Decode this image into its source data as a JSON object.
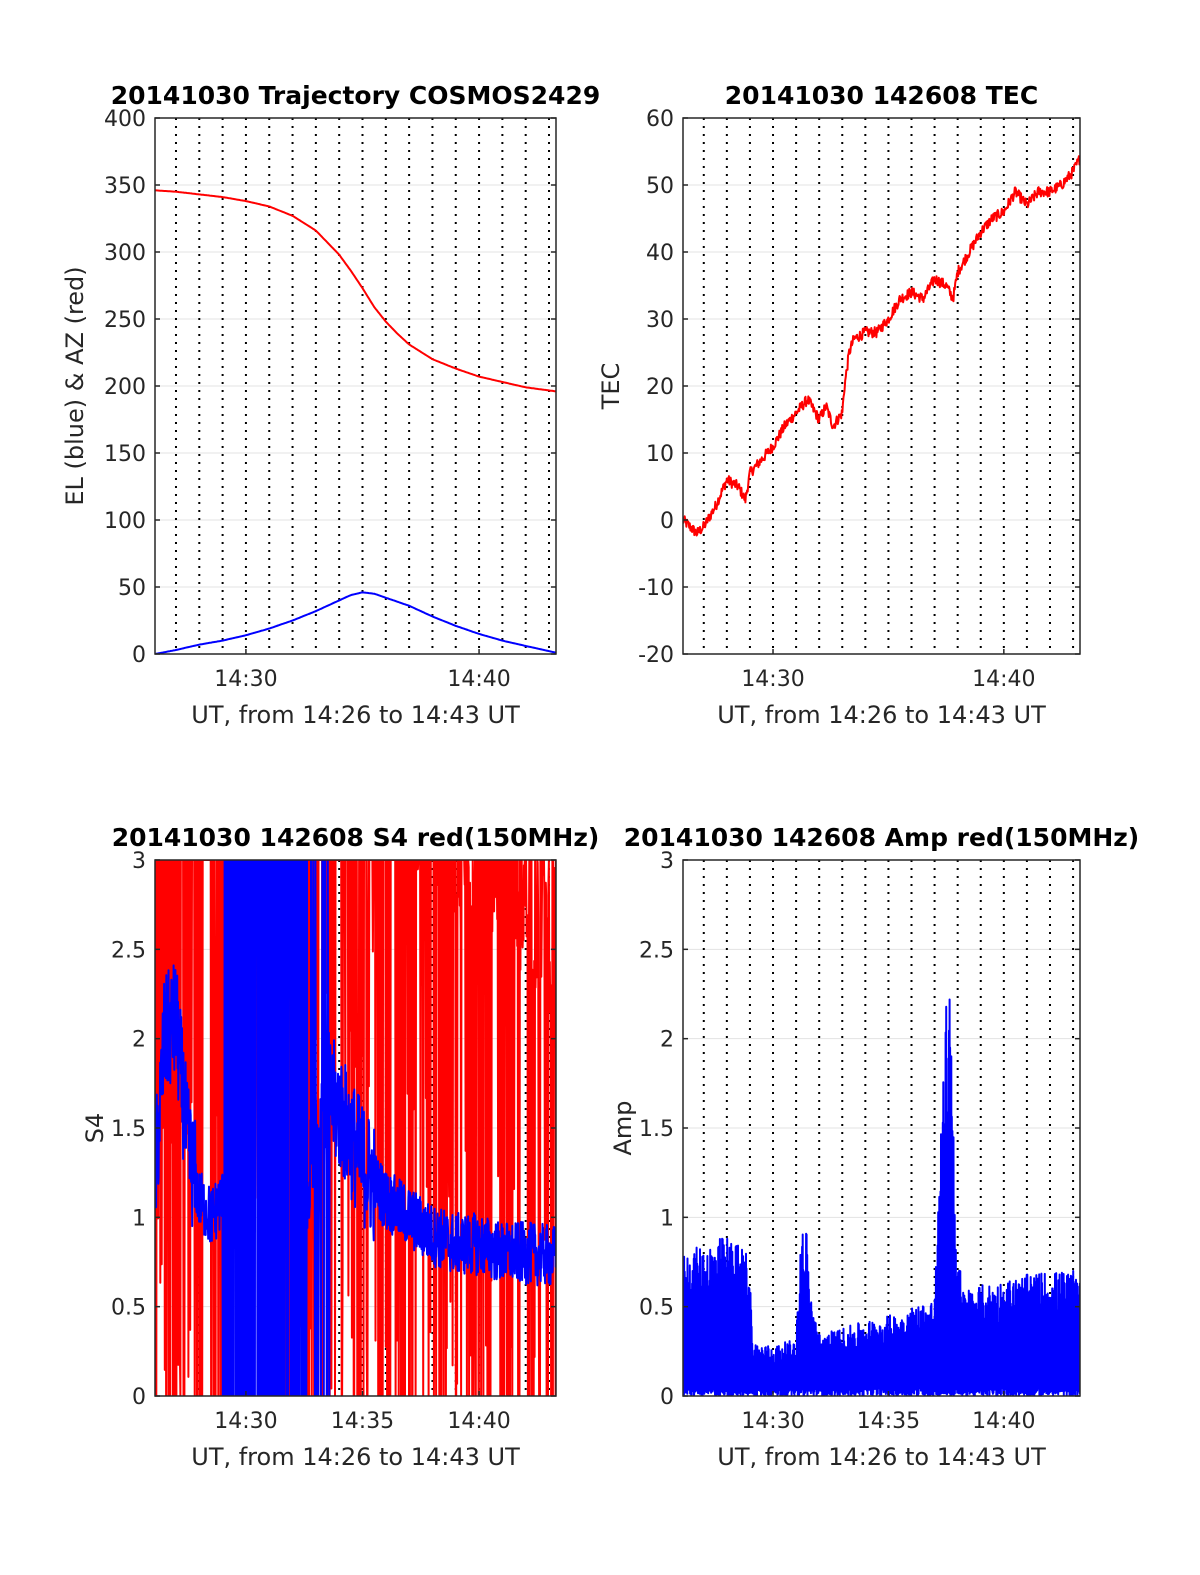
{
  "figure_date": "20141030",
  "chart_data": [
    {
      "id": "trajectory",
      "type": "line",
      "title": "20141030 Trajectory COSMOS2429",
      "xlabel": "UT, from 14:26 to 14:43 UT",
      "ylabel": "EL (blue) & AZ (red)",
      "xlim_minutes": [
        866.1,
        883.3
      ],
      "ylim": [
        0,
        400
      ],
      "xticks": [
        {
          "t": 870,
          "label": "14:30"
        },
        {
          "t": 880,
          "label": "14:40"
        }
      ],
      "yticks": [
        {
          "v": 0,
          "label": "0"
        },
        {
          "v": 50,
          "label": "50"
        },
        {
          "v": 100,
          "label": "100"
        },
        {
          "v": 150,
          "label": "150"
        },
        {
          "v": 200,
          "label": "200"
        },
        {
          "v": 250,
          "label": "250"
        },
        {
          "v": 300,
          "label": "300"
        },
        {
          "v": 350,
          "label": "350"
        },
        {
          "v": 400,
          "label": "400"
        }
      ],
      "grid": true,
      "series": [
        {
          "color": "#ff0000",
          "x": [
            866.1,
            867,
            868,
            869,
            870,
            871,
            872,
            873,
            874,
            874.5,
            875,
            875.5,
            876,
            876.5,
            877,
            878,
            879,
            880,
            881,
            882,
            883.3
          ],
          "values": [
            346,
            345,
            343,
            341,
            338,
            334,
            327,
            316,
            298,
            286,
            273,
            259,
            248,
            239,
            231,
            220,
            213,
            207,
            203,
            199,
            196
          ]
        },
        {
          "color": "#0000ff",
          "x": [
            866.1,
            867,
            868,
            869,
            870,
            871,
            872,
            873,
            874,
            874.5,
            875,
            875.5,
            876,
            877,
            878,
            879,
            880,
            881,
            882,
            883.3
          ],
          "values": [
            0,
            3,
            7,
            10,
            14,
            19,
            25,
            32,
            40,
            44,
            46,
            45,
            42,
            36,
            28,
            21,
            15,
            10,
            6,
            1
          ]
        }
      ]
    },
    {
      "id": "tec",
      "type": "line",
      "title": "20141030 142608 TEC",
      "xlabel": "UT, from 14:26 to 14:43 UT",
      "ylabel": "TEC",
      "xlim_minutes": [
        866.1,
        883.3
      ],
      "ylim": [
        -20,
        60
      ],
      "xticks": [
        {
          "t": 870,
          "label": "14:30"
        },
        {
          "t": 880,
          "label": "14:40"
        }
      ],
      "yticks": [
        {
          "v": -20,
          "label": "-20"
        },
        {
          "v": -10,
          "label": "-10"
        },
        {
          "v": 0,
          "label": "0"
        },
        {
          "v": 10,
          "label": "10"
        },
        {
          "v": 20,
          "label": "20"
        },
        {
          "v": 30,
          "label": "30"
        },
        {
          "v": 40,
          "label": "40"
        },
        {
          "v": 50,
          "label": "50"
        },
        {
          "v": 60,
          "label": "60"
        }
      ],
      "grid": true,
      "series": [
        {
          "color": "#ff0000",
          "x": [
            866.1,
            866.4,
            866.7,
            867.0,
            867.5,
            868.0,
            868.5,
            868.8,
            869.0,
            869.5,
            870.0,
            870.5,
            871.0,
            871.5,
            872.0,
            872.3,
            872.6,
            873.0,
            873.1,
            873.3,
            873.5,
            874.0,
            874.5,
            875.0,
            875.5,
            876.0,
            876.5,
            877.0,
            877.5,
            877.8,
            878.0,
            878.5,
            879.0,
            879.5,
            880.0,
            880.5,
            881.0,
            881.5,
            882.0,
            882.5,
            883.0,
            883.3
          ],
          "values": [
            0,
            -1,
            -2,
            -1,
            2,
            6,
            5,
            3,
            7,
            9,
            11,
            14,
            16,
            18,
            15,
            17,
            14,
            16,
            20,
            25,
            27,
            28,
            28,
            30,
            33,
            34,
            33,
            36,
            35,
            33,
            37,
            40,
            43,
            45,
            46,
            49,
            47,
            49,
            49,
            50,
            52,
            54
          ]
        }
      ]
    },
    {
      "id": "s4",
      "type": "line",
      "title": "20141030 142608 S4 red(150MHz)",
      "xlabel": "UT, from 14:26 to 14:43 UT",
      "ylabel": "S4",
      "xlim_minutes": [
        866.1,
        883.3
      ],
      "ylim": [
        0,
        3
      ],
      "xticks": [
        {
          "t": 870,
          "label": "14:30"
        },
        {
          "t": 875,
          "label": "14:35"
        },
        {
          "t": 880,
          "label": "14:40"
        }
      ],
      "yticks": [
        {
          "v": 0,
          "label": "0"
        },
        {
          "v": 0.5,
          "label": "0.5"
        },
        {
          "v": 1,
          "label": "1"
        },
        {
          "v": 1.5,
          "label": "1.5"
        },
        {
          "v": 2,
          "label": "2"
        },
        {
          "v": 2.5,
          "label": "2.5"
        },
        {
          "v": 3,
          "label": "3"
        }
      ],
      "grid": true,
      "series": [
        {
          "color": "#ff0000",
          "kind": "saturated-noisy",
          "x": [
            866.1,
            867,
            868,
            869,
            870,
            871,
            872,
            873,
            874,
            875,
            876,
            877,
            878,
            879,
            880,
            881,
            882,
            883.3
          ],
          "values": [
            3,
            3,
            3,
            3,
            3,
            3,
            3,
            3,
            3,
            3,
            3,
            3,
            2.8,
            2.6,
            2.6,
            2.6,
            2.3,
            2.1
          ]
        },
        {
          "color": "#0000ff",
          "kind": "noisy",
          "x": [
            866.1,
            866.5,
            867,
            867.5,
            868,
            868.5,
            869,
            869.5,
            870,
            871,
            872,
            872.5,
            873,
            873.5,
            874,
            875,
            876,
            877,
            878,
            879,
            880,
            881,
            882,
            883.3
          ],
          "values": [
            1.2,
            2.0,
            2.1,
            1.4,
            1.1,
            1.0,
            1.1,
            1.0,
            1.5,
            1.8,
            1.1,
            0.9,
            1.5,
            1.7,
            1.6,
            1.3,
            1.1,
            1.0,
            0.9,
            0.85,
            0.85,
            0.8,
            0.8,
            0.78
          ]
        }
      ]
    },
    {
      "id": "amp",
      "type": "line",
      "title": "20141030 142608 Amp red(150MHz)",
      "xlabel": "UT, from 14:26 to 14:43 UT",
      "ylabel": "Amp",
      "xlim_minutes": [
        866.1,
        883.3
      ],
      "ylim": [
        0,
        3
      ],
      "xticks": [
        {
          "t": 870,
          "label": "14:30"
        },
        {
          "t": 875,
          "label": "14:35"
        },
        {
          "t": 880,
          "label": "14:40"
        }
      ],
      "yticks": [
        {
          "v": 0,
          "label": "0"
        },
        {
          "v": 0.5,
          "label": "0.5"
        },
        {
          "v": 1,
          "label": "1"
        },
        {
          "v": 1.5,
          "label": "1.5"
        },
        {
          "v": 2,
          "label": "2"
        },
        {
          "v": 2.5,
          "label": "2.5"
        },
        {
          "v": 3,
          "label": "3"
        }
      ],
      "grid": true,
      "series": [
        {
          "color": "#0000ff",
          "kind": "noise-band",
          "x": [
            866.1,
            867,
            868,
            869,
            869.1,
            870,
            871,
            871.2,
            871.4,
            871.6,
            872,
            873,
            874,
            875,
            876,
            877,
            877.5,
            877.7,
            877.9,
            878.2,
            879,
            880,
            881,
            882,
            883.3
          ],
          "values": [
            0.8,
            0.85,
            0.9,
            0.8,
            0.3,
            0.28,
            0.32,
            0.9,
            1.05,
            0.6,
            0.35,
            0.38,
            0.42,
            0.45,
            0.5,
            0.55,
            2.2,
            2.4,
            1.0,
            0.6,
            0.62,
            0.65,
            0.68,
            0.7,
            0.7
          ]
        }
      ]
    }
  ]
}
